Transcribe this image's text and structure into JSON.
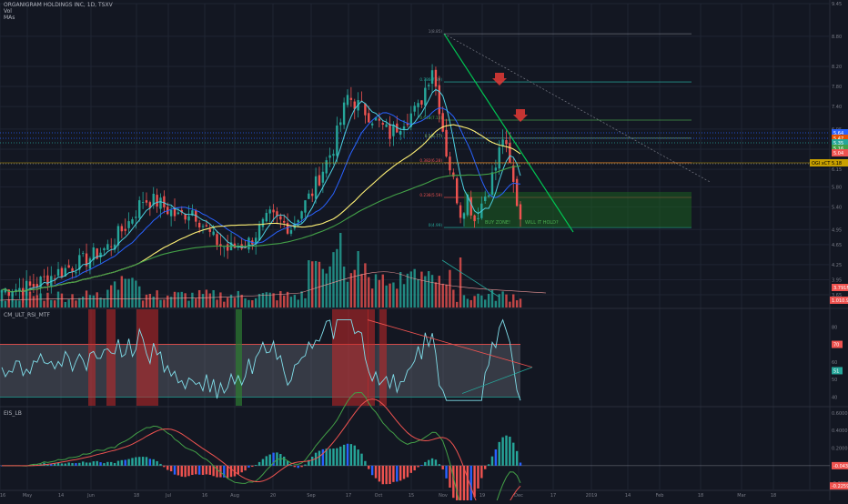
{
  "header": {
    "symbol_line": "ORGANIGRAM HOLDINGS INC, 1D, TSXV",
    "vol_label": "Vol",
    "mas_label": "MAs"
  },
  "panes": {
    "rsi_title": "CM_ULT_RSI_MTF",
    "eis_title": "EIS_LB"
  },
  "colors": {
    "background": "#131722",
    "up": "#26a69a",
    "down": "#ef5350",
    "ma_fast": "#4dd0e1",
    "ma_mid": "#2962ff",
    "ma_yellow": "#fff176",
    "ma_green": "#43a047",
    "trend_green": "#00c853",
    "rsi_line": "#80deea",
    "rsi_band": "#787b86"
  },
  "chart_data": [
    {
      "type": "candlestick",
      "title": "ORGANIGRAM HOLDINGS INC, 1D, TSXV",
      "price_axis_ticks": [
        "9.45",
        "8.80",
        "8.20",
        "7.80",
        "7.40",
        "6.95",
        "6.55",
        "6.15",
        "5.80",
        "5.40",
        "4.95",
        "4.65",
        "4.25",
        "3.95",
        "3.65"
      ],
      "time_axis_ticks": [
        "16",
        "May",
        "14",
        "Jun",
        "18",
        "Jul",
        "16",
        "Aug",
        "20",
        "Sep",
        "17",
        "Oct",
        "15",
        "Nov",
        "19",
        "Dec",
        "17",
        "2019",
        "14",
        "Feb",
        "18",
        "Mar",
        "18"
      ],
      "annotations": {
        "fib_levels": [
          {
            "label": "1(8.85)",
            "price": 8.85
          },
          {
            "label": "0.786(7.89)",
            "price": 7.89
          },
          {
            "label": "0.618(7.13)",
            "price": 7.13
          },
          {
            "label": "0.5(6.77)",
            "price": 6.77
          },
          {
            "label": "0.382(6.28)",
            "price": 6.28
          },
          {
            "label": "0.236(5.59)",
            "price": 5.59
          },
          {
            "label": "0(4.99)",
            "price": 4.99
          }
        ],
        "zones": [
          "BUY ZONE!",
          "WILL IT HOLD?"
        ],
        "price_badges": [
          "5.64",
          "5.47",
          "5.35",
          "5.16",
          "5.04"
        ],
        "last_price_badge": "OGI xCT 5.18",
        "volume_badges": [
          "3.791M",
          "1.010.99M"
        ]
      }
    },
    {
      "type": "line",
      "title": "CM_ULT_RSI_MTF",
      "axis_ticks": [
        "80",
        "70",
        "60",
        "50",
        "40"
      ],
      "badges": [
        "70",
        "51"
      ]
    },
    {
      "type": "line",
      "title": "EIS_LB",
      "axis_ticks": [
        "0.6000",
        "0.4000",
        "0.2000",
        "0.0000",
        "-0.2000"
      ],
      "badges": [
        "-0.0438",
        "-0.2259"
      ]
    }
  ]
}
